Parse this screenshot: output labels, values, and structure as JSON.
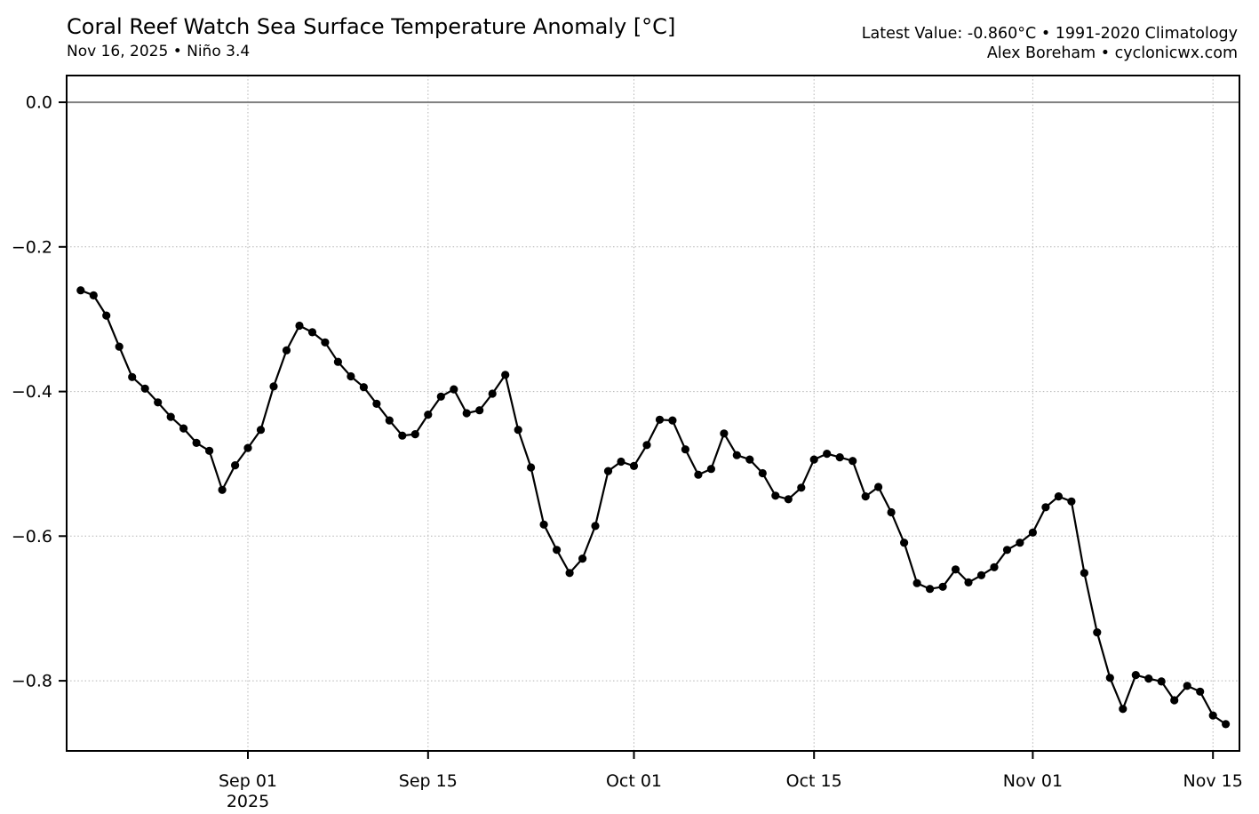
{
  "page": {
    "title": "Coral Reef Watch Sea Surface Temperature Anomaly [°C]",
    "subtitle": "Nov 16, 2025 • Niño 3.4",
    "latest_value_line": "Latest Value: -0.860°C • 1991-2020 Climatology",
    "credit_line": "Alex Boreham • cyclonicwx.com"
  },
  "chart_data": {
    "type": "line",
    "title": "Coral Reef Watch Sea Surface Temperature Anomaly [°C]",
    "xlabel": "",
    "ylabel": "",
    "ylim": [
      -0.897,
      0.037
    ],
    "grid": "dotted",
    "legend": "none",
    "latest_value": -0.86,
    "latest_date": "2025-11-16",
    "zero_line": {
      "value": 0.0,
      "color": "#808080"
    },
    "colors": {
      "line": "#000000",
      "marker": "#000000",
      "grid": "#b3b3b3",
      "zero_line": "#808080",
      "spine": "#000000",
      "text": "#000000",
      "background": "#ffffff"
    },
    "yticks": [
      {
        "value": 0.0,
        "label": "0.0"
      },
      {
        "value": -0.2,
        "label": "−0.2"
      },
      {
        "value": -0.4,
        "label": "−0.4"
      },
      {
        "value": -0.6,
        "label": "−0.6"
      },
      {
        "value": -0.8,
        "label": "−0.8"
      }
    ],
    "xticks": [
      {
        "date": "2025-09-01",
        "label": "Sep 01",
        "sublabel": "2025"
      },
      {
        "date": "2025-09-15",
        "label": "Sep 15"
      },
      {
        "date": "2025-10-01",
        "label": "Oct 01"
      },
      {
        "date": "2025-10-15",
        "label": "Oct 15"
      },
      {
        "date": "2025-11-01",
        "label": "Nov 01"
      },
      {
        "date": "2025-11-15",
        "label": "Nov 15"
      }
    ],
    "series": [
      {
        "name": "Niño 3.4 SST anomaly (°C), 1991-2020 climatology",
        "dates": [
          "2025-08-19",
          "2025-08-20",
          "2025-08-21",
          "2025-08-22",
          "2025-08-23",
          "2025-08-24",
          "2025-08-25",
          "2025-08-26",
          "2025-08-27",
          "2025-08-28",
          "2025-08-29",
          "2025-08-30",
          "2025-08-31",
          "2025-09-01",
          "2025-09-02",
          "2025-09-03",
          "2025-09-04",
          "2025-09-05",
          "2025-09-06",
          "2025-09-07",
          "2025-09-08",
          "2025-09-09",
          "2025-09-10",
          "2025-09-11",
          "2025-09-12",
          "2025-09-13",
          "2025-09-14",
          "2025-09-15",
          "2025-09-16",
          "2025-09-17",
          "2025-09-18",
          "2025-09-19",
          "2025-09-20",
          "2025-09-21",
          "2025-09-22",
          "2025-09-23",
          "2025-09-24",
          "2025-09-25",
          "2025-09-26",
          "2025-09-27",
          "2025-09-28",
          "2025-09-29",
          "2025-09-30",
          "2025-10-01",
          "2025-10-02",
          "2025-10-03",
          "2025-10-04",
          "2025-10-05",
          "2025-10-06",
          "2025-10-07",
          "2025-10-08",
          "2025-10-09",
          "2025-10-10",
          "2025-10-11",
          "2025-10-12",
          "2025-10-13",
          "2025-10-14",
          "2025-10-15",
          "2025-10-16",
          "2025-10-17",
          "2025-10-18",
          "2025-10-19",
          "2025-10-20",
          "2025-10-21",
          "2025-10-22",
          "2025-10-23",
          "2025-10-24",
          "2025-10-25",
          "2025-10-26",
          "2025-10-27",
          "2025-10-28",
          "2025-10-29",
          "2025-10-30",
          "2025-10-31",
          "2025-11-01",
          "2025-11-02",
          "2025-11-03",
          "2025-11-04",
          "2025-11-05",
          "2025-11-06",
          "2025-11-07",
          "2025-11-08",
          "2025-11-09",
          "2025-11-10",
          "2025-11-11",
          "2025-11-12",
          "2025-11-13",
          "2025-11-14",
          "2025-11-15",
          "2025-11-16"
        ],
        "values": [
          -0.26,
          -0.267,
          -0.295,
          -0.338,
          -0.38,
          -0.396,
          -0.415,
          -0.435,
          -0.451,
          -0.471,
          -0.482,
          -0.536,
          -0.502,
          -0.478,
          -0.453,
          -0.393,
          -0.343,
          -0.309,
          -0.318,
          -0.332,
          -0.359,
          -0.379,
          -0.394,
          -0.417,
          -0.44,
          -0.461,
          -0.459,
          -0.432,
          -0.407,
          -0.397,
          -0.43,
          -0.426,
          -0.403,
          -0.377,
          -0.453,
          -0.505,
          -0.584,
          -0.619,
          -0.651,
          -0.631,
          -0.586,
          -0.51,
          -0.497,
          -0.503,
          -0.474,
          -0.439,
          -0.44,
          -0.48,
          -0.515,
          -0.507,
          -0.458,
          -0.488,
          -0.494,
          -0.513,
          -0.544,
          -0.549,
          -0.533,
          -0.494,
          -0.486,
          -0.491,
          -0.496,
          -0.545,
          -0.532,
          -0.567,
          -0.609,
          -0.665,
          -0.673,
          -0.67,
          -0.646,
          -0.664,
          -0.654,
          -0.643,
          -0.619,
          -0.609,
          -0.595,
          -0.56,
          -0.545,
          -0.552,
          -0.651,
          -0.733,
          -0.796,
          -0.839,
          -0.792,
          -0.797,
          -0.801,
          -0.827,
          -0.807,
          -0.815,
          -0.848,
          -0.86
        ]
      }
    ]
  }
}
